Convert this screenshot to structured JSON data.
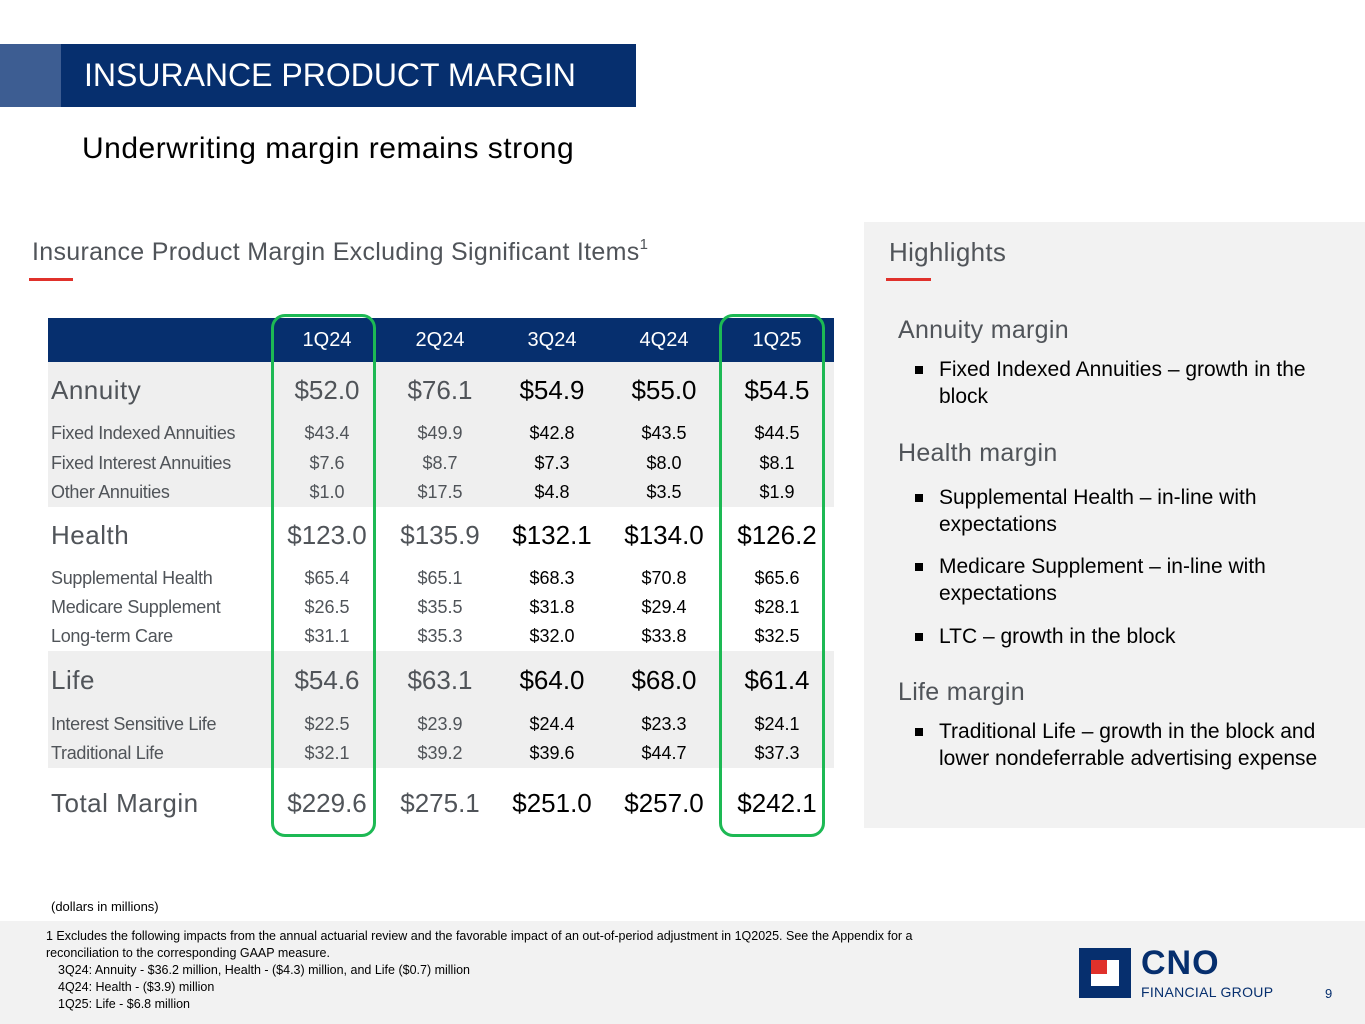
{
  "header": {
    "title": "INSURANCE PRODUCT MARGIN",
    "subtitle": "Underwriting margin remains strong"
  },
  "table": {
    "title": "Insurance Product Margin Excluding Significant Items",
    "title_footnote": "1",
    "columns": [
      "1Q24",
      "2Q24",
      "3Q24",
      "4Q24",
      "1Q25"
    ],
    "rows": [
      {
        "label": "Annuity",
        "kind": "big",
        "values": [
          "$52.0",
          "$76.1",
          "$54.9",
          "$55.0",
          "$54.5"
        ]
      },
      {
        "label": "Fixed Indexed Annuities",
        "kind": "small",
        "values": [
          "$43.4",
          "$49.9",
          "$42.8",
          "$43.5",
          "$44.5"
        ]
      },
      {
        "label": "Fixed Interest Annuities",
        "kind": "small",
        "values": [
          "$7.6",
          "$8.7",
          "$7.3",
          "$8.0",
          "$8.1"
        ]
      },
      {
        "label": "Other Annuities",
        "kind": "small",
        "values": [
          "$1.0",
          "$17.5",
          "$4.8",
          "$3.5",
          "$1.9"
        ]
      },
      {
        "label": "Health",
        "kind": "big",
        "values": [
          "$123.0",
          "$135.9",
          "$132.1",
          "$134.0",
          "$126.2"
        ]
      },
      {
        "label": "Supplemental Health",
        "kind": "small",
        "values": [
          "$65.4",
          "$65.1",
          "$68.3",
          "$70.8",
          "$65.6"
        ]
      },
      {
        "label": "Medicare Supplement",
        "kind": "small",
        "values": [
          "$26.5",
          "$35.5",
          "$31.8",
          "$29.4",
          "$28.1"
        ]
      },
      {
        "label": "Long-term Care",
        "kind": "small",
        "values": [
          "$31.1",
          "$35.3",
          "$32.0",
          "$33.8",
          "$32.5"
        ]
      },
      {
        "label": "Life",
        "kind": "big",
        "values": [
          "$54.6",
          "$63.1",
          "$64.0",
          "$68.0",
          "$61.4"
        ]
      },
      {
        "label": "Interest Sensitive Life",
        "kind": "small",
        "values": [
          "$22.5",
          "$23.9",
          "$24.4",
          "$23.3",
          "$24.1"
        ]
      },
      {
        "label": "Traditional Life",
        "kind": "small",
        "values": [
          "$32.1",
          "$39.2",
          "$39.6",
          "$44.7",
          "$37.3"
        ]
      },
      {
        "label": "Total Margin",
        "kind": "total",
        "values": [
          "$229.6",
          "$275.1",
          "$251.0",
          "$257.0",
          "$242.1"
        ]
      }
    ],
    "units_note": "(dollars in millions)"
  },
  "highlights": {
    "title": "Highlights",
    "sections": [
      {
        "heading": "Annuity margin",
        "bullets": [
          "Fixed Indexed Annuities – growth in the block"
        ]
      },
      {
        "heading": "Health margin",
        "bullets": [
          "Supplemental Health – in-line with expectations",
          "Medicare Supplement – in-line with expectations",
          "LTC – growth in the block"
        ]
      },
      {
        "heading": "Life margin",
        "bullets": [
          "Traditional Life – growth in the block and lower nondeferrable advertising expense"
        ]
      }
    ]
  },
  "footnote": {
    "line1": "1 Excludes the following impacts from the annual actuarial review and the favorable impact of an out-of-period adjustment in 1Q2025. See the Appendix for a",
    "line2": "reconciliation to the corresponding GAAP measure.",
    "items": [
      "3Q24:  Annuity - $36.2 million, Health - ($4.3) million, and Life ($0.7) million",
      "4Q24:  Health - ($3.9) million",
      "1Q25:  Life - $6.8 million"
    ]
  },
  "logo": {
    "name": "CNO",
    "tagline": "FINANCIAL GROUP"
  },
  "page_number": "9",
  "colors": {
    "navy": "#062f6e",
    "accent_red": "#e0312b",
    "highlight_green": "#1db954",
    "grey_band": "#efefef"
  }
}
